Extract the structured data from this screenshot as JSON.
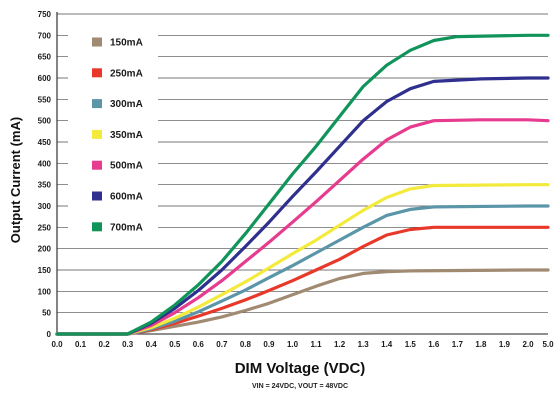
{
  "chart_data": {
    "type": "line",
    "xlabel": "DIM Voltage (VDC)",
    "ylabel": "Output Current (mA)",
    "footnote": "VIN = 24VDC, VOUT = 48VDC",
    "xlim": [
      0.0,
      5.0
    ],
    "ylim": [
      0,
      750
    ],
    "x_tick_labels": [
      "0.0",
      "0.1",
      "0.2",
      "0.3",
      "0.4",
      "0.5",
      "0.6",
      "0.7",
      "0.8",
      "0.9",
      "1.0",
      "1.1",
      "1.2",
      "1.3",
      "1.4",
      "1.5",
      "1.6",
      "1.7",
      "1.8",
      "1.9",
      "2.0",
      "5.0"
    ],
    "y_ticks": [
      0,
      50,
      100,
      150,
      200,
      250,
      300,
      350,
      400,
      450,
      500,
      550,
      600,
      650,
      700,
      750
    ],
    "grid": "horizontal",
    "legend_position": "top-left",
    "series": [
      {
        "name": "150mA",
        "color": "#a08a72",
        "points": [
          [
            0.0,
            0
          ],
          [
            0.3,
            0
          ],
          [
            0.4,
            8
          ],
          [
            0.5,
            18
          ],
          [
            0.6,
            28
          ],
          [
            0.7,
            40
          ],
          [
            0.8,
            55
          ],
          [
            0.9,
            72
          ],
          [
            1.0,
            92
          ],
          [
            1.1,
            112
          ],
          [
            1.2,
            130
          ],
          [
            1.3,
            142
          ],
          [
            1.4,
            146
          ],
          [
            1.5,
            148
          ],
          [
            2.0,
            150
          ],
          [
            5.0,
            150
          ]
        ]
      },
      {
        "name": "250mA",
        "color": "#e8382a",
        "points": [
          [
            0.0,
            0
          ],
          [
            0.3,
            0
          ],
          [
            0.4,
            10
          ],
          [
            0.5,
            25
          ],
          [
            0.6,
            42
          ],
          [
            0.7,
            60
          ],
          [
            0.8,
            80
          ],
          [
            0.9,
            102
          ],
          [
            1.0,
            125
          ],
          [
            1.1,
            150
          ],
          [
            1.2,
            175
          ],
          [
            1.3,
            205
          ],
          [
            1.4,
            232
          ],
          [
            1.5,
            245
          ],
          [
            1.6,
            250
          ],
          [
            2.0,
            250
          ],
          [
            5.0,
            250
          ]
        ]
      },
      {
        "name": "300mA",
        "color": "#5a96a8",
        "points": [
          [
            0.0,
            0
          ],
          [
            0.3,
            0
          ],
          [
            0.4,
            12
          ],
          [
            0.5,
            30
          ],
          [
            0.6,
            52
          ],
          [
            0.7,
            77
          ],
          [
            0.8,
            103
          ],
          [
            0.9,
            132
          ],
          [
            1.0,
            160
          ],
          [
            1.1,
            190
          ],
          [
            1.2,
            220
          ],
          [
            1.3,
            250
          ],
          [
            1.4,
            278
          ],
          [
            1.5,
            292
          ],
          [
            1.6,
            298
          ],
          [
            2.0,
            300
          ],
          [
            5.0,
            300
          ]
        ]
      },
      {
        "name": "350mA",
        "color": "#f4ea3c",
        "points": [
          [
            0.0,
            0
          ],
          [
            0.3,
            0
          ],
          [
            0.4,
            15
          ],
          [
            0.5,
            37
          ],
          [
            0.6,
            63
          ],
          [
            0.7,
            92
          ],
          [
            0.8,
            122
          ],
          [
            0.9,
            155
          ],
          [
            1.0,
            188
          ],
          [
            1.1,
            220
          ],
          [
            1.2,
            255
          ],
          [
            1.3,
            290
          ],
          [
            1.4,
            320
          ],
          [
            1.5,
            340
          ],
          [
            1.6,
            348
          ],
          [
            2.0,
            350
          ],
          [
            5.0,
            350
          ]
        ]
      },
      {
        "name": "500mA",
        "color": "#e63b8e",
        "points": [
          [
            0.0,
            0
          ],
          [
            0.3,
            0
          ],
          [
            0.4,
            20
          ],
          [
            0.5,
            50
          ],
          [
            0.6,
            85
          ],
          [
            0.7,
            125
          ],
          [
            0.8,
            170
          ],
          [
            0.9,
            215
          ],
          [
            1.0,
            262
          ],
          [
            1.1,
            310
          ],
          [
            1.2,
            360
          ],
          [
            1.3,
            410
          ],
          [
            1.4,
            455
          ],
          [
            1.5,
            485
          ],
          [
            1.6,
            500
          ],
          [
            1.8,
            502
          ],
          [
            2.0,
            502
          ],
          [
            5.0,
            500
          ]
        ]
      },
      {
        "name": "600mA",
        "color": "#2e2f8e",
        "points": [
          [
            0.0,
            0
          ],
          [
            0.3,
            0
          ],
          [
            0.4,
            25
          ],
          [
            0.5,
            60
          ],
          [
            0.6,
            102
          ],
          [
            0.7,
            150
          ],
          [
            0.8,
            205
          ],
          [
            0.9,
            262
          ],
          [
            1.0,
            322
          ],
          [
            1.1,
            380
          ],
          [
            1.2,
            440
          ],
          [
            1.3,
            500
          ],
          [
            1.4,
            545
          ],
          [
            1.5,
            575
          ],
          [
            1.6,
            592
          ],
          [
            1.8,
            598
          ],
          [
            2.0,
            600
          ],
          [
            5.0,
            600
          ]
        ]
      },
      {
        "name": "700mA",
        "color": "#10945a",
        "points": [
          [
            0.0,
            0
          ],
          [
            0.3,
            0
          ],
          [
            0.4,
            28
          ],
          [
            0.5,
            68
          ],
          [
            0.6,
            115
          ],
          [
            0.7,
            170
          ],
          [
            0.8,
            235
          ],
          [
            0.9,
            305
          ],
          [
            1.0,
            375
          ],
          [
            1.1,
            440
          ],
          [
            1.2,
            510
          ],
          [
            1.3,
            580
          ],
          [
            1.4,
            630
          ],
          [
            1.5,
            665
          ],
          [
            1.6,
            688
          ],
          [
            1.7,
            697
          ],
          [
            2.0,
            700
          ],
          [
            5.0,
            700
          ]
        ]
      }
    ]
  }
}
